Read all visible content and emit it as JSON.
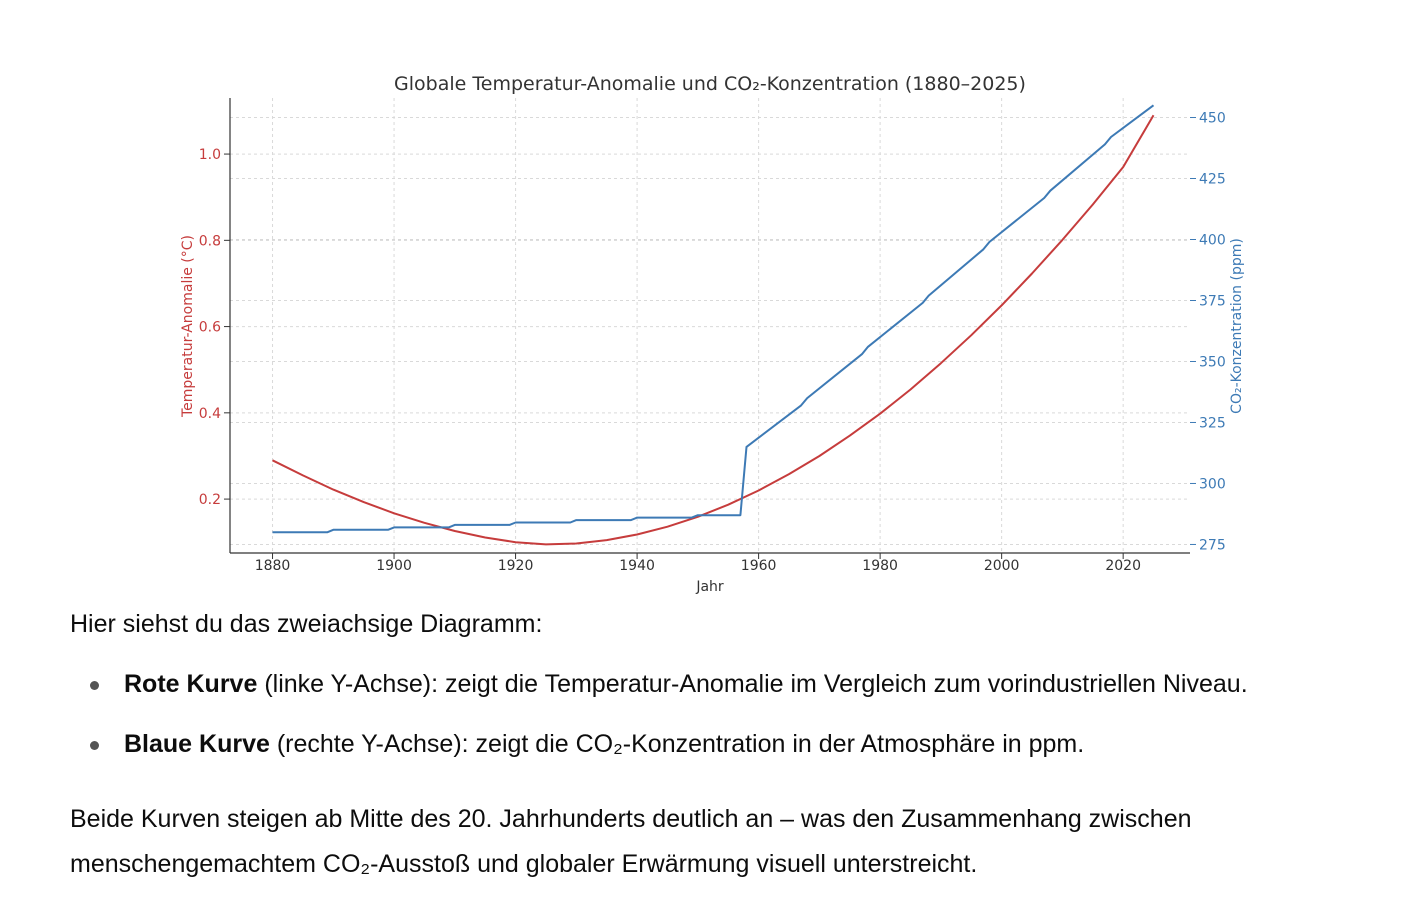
{
  "chart_data": {
    "type": "line",
    "title": "Globale Temperatur-Anomalie und CO₂-Konzentration (1880–2025)",
    "xlabel": "Jahr",
    "ylabel_left": "Temperatur-Anomalie (°C)",
    "ylabel_right": "CO₂-Konzentration (ppm)",
    "xlim": [
      1873,
      2031
    ],
    "ylim_left": [
      0.075,
      1.13
    ],
    "ylim_right": [
      271.5,
      458
    ],
    "x_ticks": [
      "1880",
      "1900",
      "1920",
      "1940",
      "1960",
      "1980",
      "2000",
      "2020"
    ],
    "y_left_ticks": [
      "0.2",
      "0.4",
      "0.6",
      "0.8",
      "1.0"
    ],
    "y_right_ticks": [
      "275",
      "300",
      "325",
      "350",
      "375",
      "400",
      "425",
      "450"
    ],
    "grid": true,
    "series": [
      {
        "name": "Temperatur-Anomalie",
        "axis": "left",
        "color": "#c63c3c",
        "x": [
          1880,
          1885,
          1890,
          1895,
          1900,
          1905,
          1910,
          1915,
          1920,
          1925,
          1930,
          1935,
          1940,
          1945,
          1950,
          1955,
          1960,
          1965,
          1970,
          1975,
          1980,
          1985,
          1990,
          1995,
          2000,
          2005,
          2010,
          2015,
          2020,
          2025
        ],
        "y": [
          0.29,
          0.255,
          0.222,
          0.193,
          0.167,
          0.145,
          0.126,
          0.111,
          0.1,
          0.095,
          0.097,
          0.105,
          0.118,
          0.136,
          0.159,
          0.187,
          0.22,
          0.258,
          0.3,
          0.347,
          0.398,
          0.454,
          0.515,
          0.58,
          0.649,
          0.723,
          0.801,
          0.883,
          0.97,
          1.09
        ]
      },
      {
        "name": "CO₂-Konzentration",
        "axis": "right",
        "color": "#3d7ab5",
        "x": [
          1880,
          1889,
          1890,
          1899,
          1900,
          1909,
          1910,
          1919,
          1920,
          1929,
          1930,
          1939,
          1940,
          1949,
          1950,
          1957,
          1958,
          1967,
          1968,
          1977,
          1978,
          1987,
          1988,
          1997,
          1998,
          2007,
          2008,
          2017,
          2018,
          2025
        ],
        "y": [
          280,
          280,
          281,
          281,
          282,
          282,
          283,
          283,
          284,
          284,
          285,
          285,
          286,
          286,
          287,
          287,
          315,
          332,
          335,
          353,
          356,
          374,
          377,
          396,
          399,
          417,
          420,
          439,
          442,
          455
        ]
      }
    ]
  },
  "text": {
    "intro": "Hier siehst du das zweiachsige Diagramm:",
    "bullets": [
      {
        "bold": "Rote Kurve",
        "rest": " (linke Y-Achse): zeigt die Temperatur-Anomalie im Vergleich zum vorindustriellen Niveau."
      },
      {
        "bold": "Blaue Kurve",
        "rest": " (rechte Y-Achse): zeigt die CO₂-Konzentration in der Atmosphäre in ppm."
      }
    ],
    "outro": "Beide Kurven steigen ab Mitte des 20. Jahrhunderts deutlich an – was den Zusammenhang zwischen menschengemachtem CO₂-Ausstoß und globaler Erwärmung visuell unterstreicht."
  }
}
